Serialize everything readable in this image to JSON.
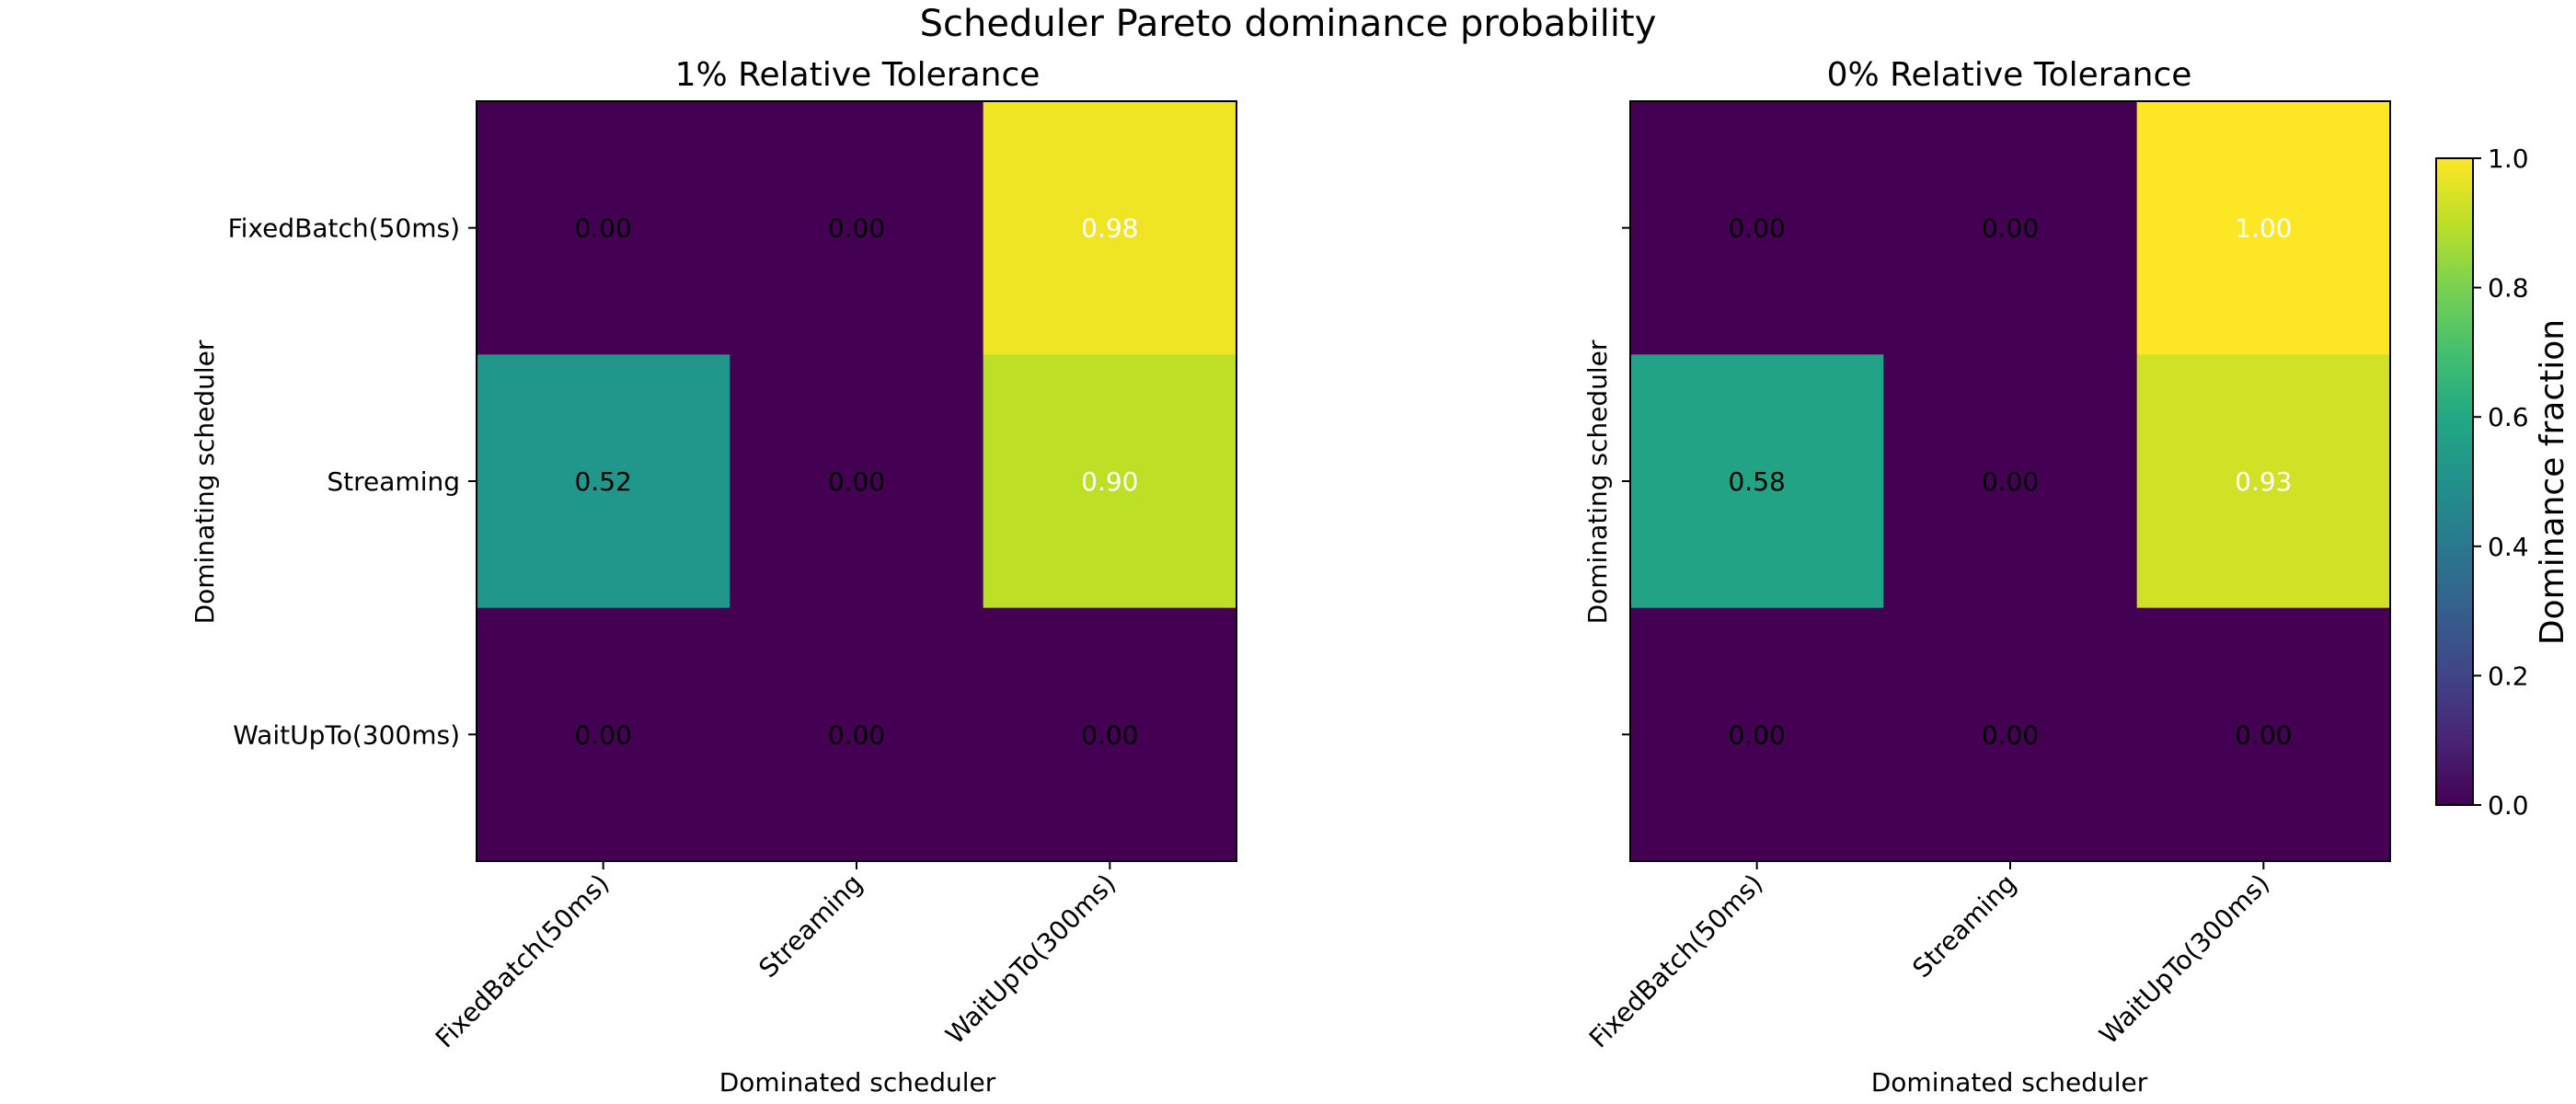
{
  "figure": {
    "title": "Scheduler Pareto dominance probability"
  },
  "chart_data": [
    {
      "type": "heatmap",
      "title": "1% Relative Tolerance",
      "xlabel": "Dominated scheduler",
      "ylabel": "Dominating scheduler",
      "x_categories": [
        "FixedBatch(50ms)",
        "Streaming",
        "WaitUpTo(300ms)"
      ],
      "y_categories": [
        "FixedBatch(50ms)",
        "Streaming",
        "WaitUpTo(300ms)"
      ],
      "values": [
        [
          0.0,
          0.0,
          0.98
        ],
        [
          0.52,
          0.0,
          0.9
        ],
        [
          0.0,
          0.0,
          0.0
        ]
      ],
      "value_range": [
        0,
        1
      ],
      "colormap": "viridis",
      "show_ytick_labels": true
    },
    {
      "type": "heatmap",
      "title": "0% Relative Tolerance",
      "xlabel": "Dominated scheduler",
      "ylabel": "Dominating scheduler",
      "x_categories": [
        "FixedBatch(50ms)",
        "Streaming",
        "WaitUpTo(300ms)"
      ],
      "y_categories": [
        "FixedBatch(50ms)",
        "Streaming",
        "WaitUpTo(300ms)"
      ],
      "values": [
        [
          0.0,
          0.0,
          1.0
        ],
        [
          0.58,
          0.0,
          0.93
        ],
        [
          0.0,
          0.0,
          0.0
        ]
      ],
      "value_range": [
        0,
        1
      ],
      "colormap": "viridis",
      "show_ytick_labels": false
    }
  ],
  "colorbar": {
    "label": "Dominance fraction",
    "ticks": [
      "0.0",
      "0.2",
      "0.4",
      "0.6",
      "0.8",
      "1.0"
    ],
    "range": [
      0,
      1
    ]
  }
}
